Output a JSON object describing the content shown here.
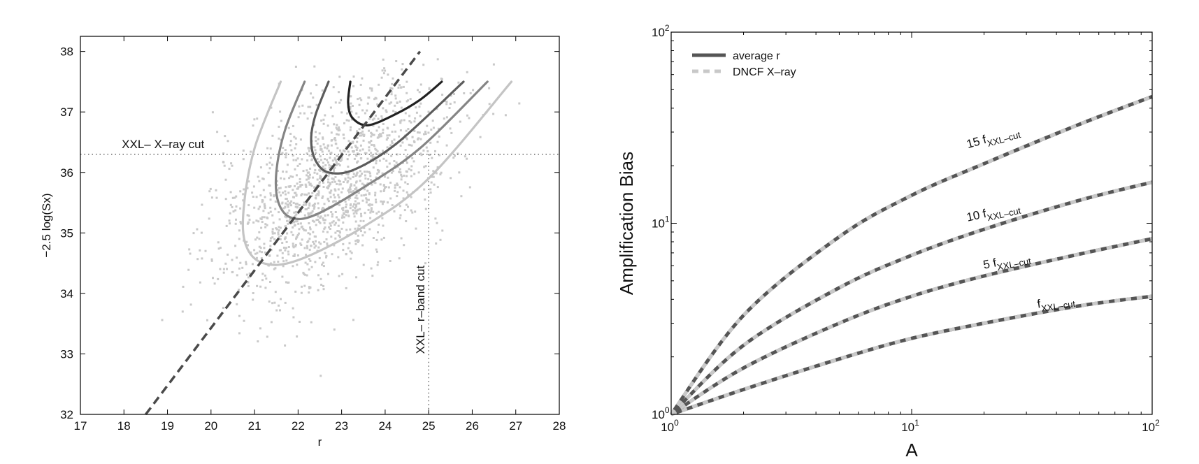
{
  "chart_data": [
    {
      "type": "scatter",
      "xlabel": "r",
      "ylabel": "−2.5 log(Sx)",
      "xlim": [
        17,
        28
      ],
      "ylim": [
        32,
        38.25
      ],
      "xticks": [
        "17",
        "18",
        "19",
        "20",
        "21",
        "22",
        "23",
        "24",
        "25",
        "26",
        "27",
        "28"
      ],
      "yticks": [
        "32",
        "33",
        "34",
        "35",
        "36",
        "37",
        "38"
      ],
      "cuts": {
        "xray_cut": {
          "y": 36.3,
          "label": "XXL– X–ray cut"
        },
        "rband_cut": {
          "x": 25.0,
          "label": "XXL– r–band cut"
        }
      },
      "trend_line": {
        "style": "dashed",
        "color": "#4a4a4a",
        "x": [
          18.5,
          24.8
        ],
        "y": [
          32.0,
          38.0
        ]
      },
      "contours": [
        {
          "color": "#c4c4c4",
          "x": [
            21.6,
            21.0,
            20.75,
            20.8,
            21.2,
            22.0,
            23.5,
            25.0,
            26.9
          ],
          "y": [
            37.5,
            36.4,
            35.4,
            34.8,
            34.5,
            34.55,
            35.1,
            35.9,
            37.5
          ]
        },
        {
          "color": "#858585",
          "x": [
            22.15,
            21.7,
            21.5,
            21.55,
            21.85,
            22.4,
            23.5,
            24.8,
            26.35
          ],
          "y": [
            37.5,
            36.7,
            36.0,
            35.5,
            35.25,
            35.3,
            35.75,
            36.4,
            37.5
          ]
        },
        {
          "color": "#5c5c5c",
          "x": [
            22.7,
            22.4,
            22.3,
            22.4,
            22.7,
            23.3,
            24.3,
            25.8
          ],
          "y": [
            37.5,
            36.95,
            36.55,
            36.2,
            36.0,
            36.05,
            36.5,
            37.5
          ]
        },
        {
          "color": "#222222",
          "x": [
            23.2,
            23.15,
            23.25,
            23.6,
            24.2,
            24.8,
            25.3
          ],
          "y": [
            37.5,
            37.15,
            36.9,
            36.78,
            36.95,
            37.2,
            37.5
          ]
        }
      ],
      "scatter_seed": 7,
      "scatter_count": 1500
    },
    {
      "type": "line",
      "scale": "log-log",
      "xlabel": "A",
      "ylabel": "Amplification Bias",
      "xlim": [
        1,
        100
      ],
      "ylim": [
        1,
        100
      ],
      "xticks": [
        {
          "base": "10",
          "exp": "0"
        },
        {
          "base": "10",
          "exp": "1"
        },
        {
          "base": "10",
          "exp": "2"
        }
      ],
      "yticks": [
        {
          "base": "10",
          "exp": "0"
        },
        {
          "base": "10",
          "exp": "1"
        },
        {
          "base": "10",
          "exp": "2"
        }
      ],
      "legend": {
        "position": "top-left",
        "entries": [
          {
            "label": "average r",
            "style": "solid",
            "color": "#555555"
          },
          {
            "label": "DNCF X–ray",
            "style": "dashed",
            "color": "#c8c8c8"
          }
        ]
      },
      "series": [
        {
          "label_main": "f",
          "label_sub": "XXL–cut",
          "x": [
            1,
            2,
            5,
            10,
            20,
            50,
            100
          ],
          "y": [
            1.0,
            1.35,
            1.95,
            2.5,
            3.0,
            3.7,
            4.15
          ]
        },
        {
          "label_main": "5 f",
          "label_sub": "XXL–cut",
          "x": [
            1,
            2,
            5,
            10,
            20,
            50,
            100
          ],
          "y": [
            1.0,
            1.75,
            3.0,
            4.15,
            5.3,
            6.9,
            8.3
          ]
        },
        {
          "label_main": "10 f",
          "label_sub": "XXL–cut",
          "x": [
            1,
            2,
            5,
            10,
            20,
            50,
            100
          ],
          "y": [
            1.0,
            2.3,
            4.6,
            6.8,
            9.3,
            13.2,
            16.4
          ]
        },
        {
          "label_main": "15 f",
          "label_sub": "XXL–cut",
          "x": [
            1,
            2,
            5,
            10,
            20,
            50,
            100
          ],
          "y": [
            1.0,
            3.3,
            8.5,
            14.0,
            20.5,
            33.0,
            46.0
          ]
        }
      ]
    }
  ]
}
